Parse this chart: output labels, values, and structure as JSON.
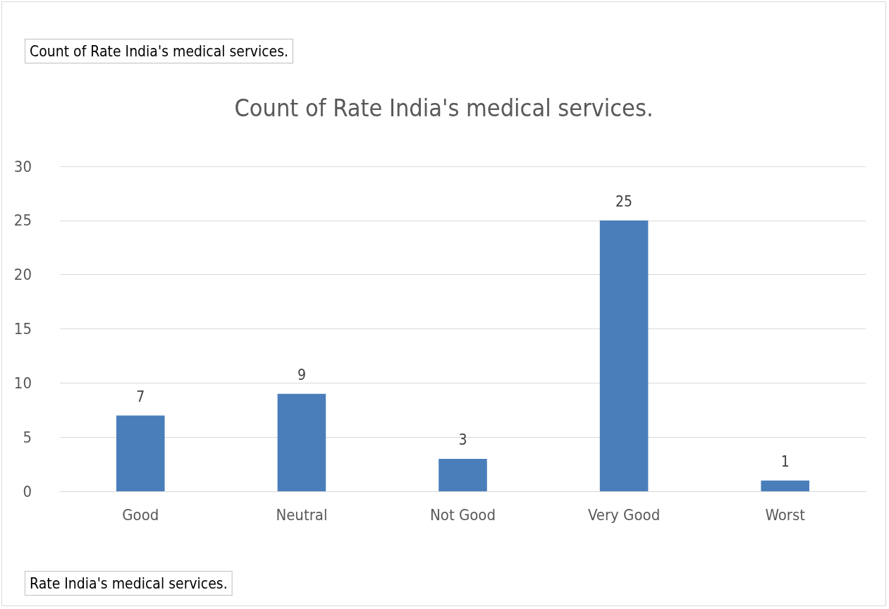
{
  "chart_data": {
    "type": "bar",
    "title": "Count of Rate India's medical services.",
    "xlabel": "Rate India's medical services.",
    "annotations": [
      "Count of Rate India's medical services."
    ],
    "categories": [
      "Good",
      "Neutral",
      "Not Good",
      "Very Good",
      "Worst"
    ],
    "values": [
      7,
      9,
      3,
      25,
      1
    ],
    "color": "#4a7ebb",
    "ylim": [
      0,
      30
    ],
    "yticks": [
      0,
      5,
      10,
      15,
      20,
      25,
      30
    ],
    "grid": "y",
    "data_labels": true
  }
}
